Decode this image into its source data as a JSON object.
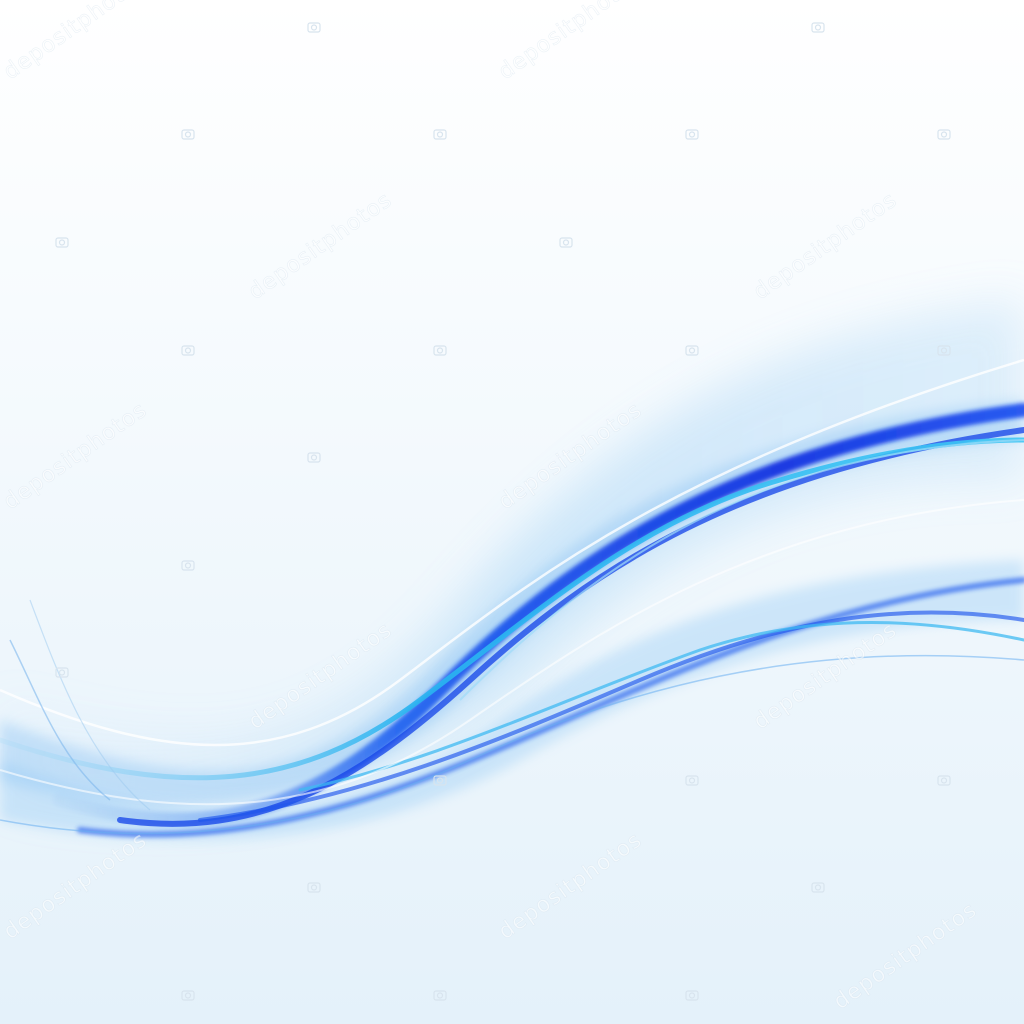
{
  "scene": {
    "subject": "abstract-blue-wave-background",
    "colors": {
      "background_top": "#ffffff",
      "background_bottom": "#e6f2fb",
      "wave_deep": "#0a2be0",
      "wave_mid": "#1e6ff0",
      "wave_light": "#34b8f2",
      "wave_haze": "#bfe0f8"
    }
  },
  "watermark": {
    "text": "depositphotos",
    "icon": "camera-icon"
  }
}
